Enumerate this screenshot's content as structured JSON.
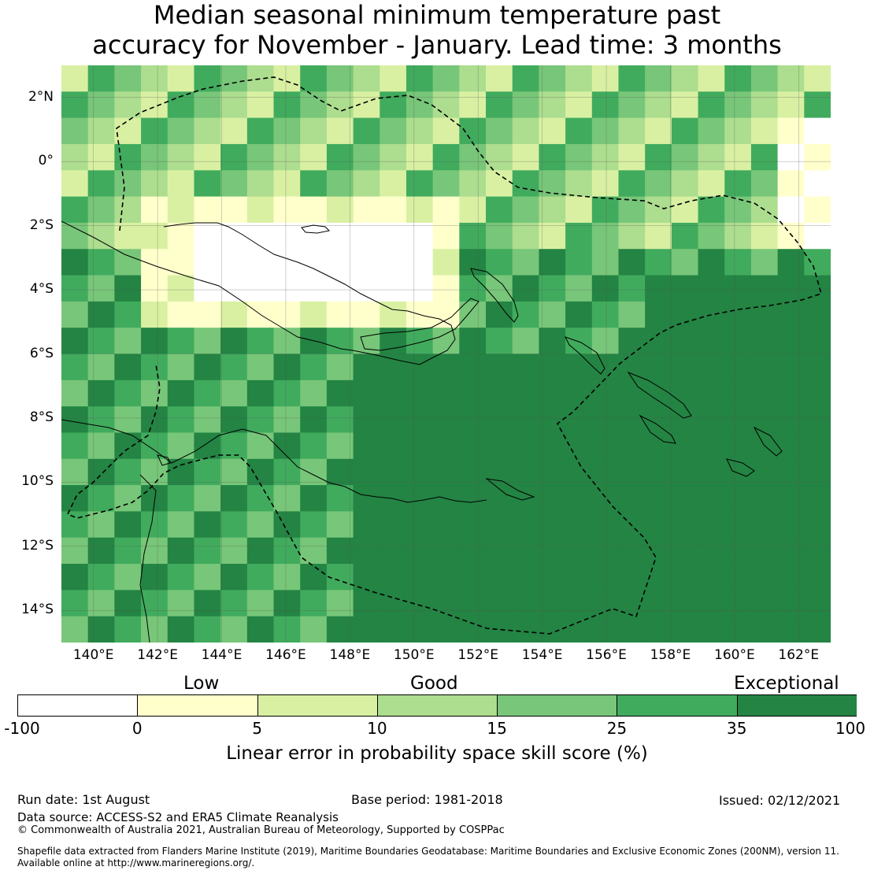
{
  "title_line1": "Median seasonal minimum temperature past",
  "title_line2": "accuracy for November - January. Lead time: 3 months",
  "map": {
    "lon_range": [
      139,
      163
    ],
    "lat_range": [
      -15,
      3
    ],
    "lat_labels": [
      "2°N",
      "0°",
      "2°S",
      "4°S",
      "6°S",
      "8°S",
      "10°S",
      "12°S",
      "14°S"
    ],
    "lat_values": [
      2,
      0,
      -2,
      -4,
      -6,
      -8,
      -10,
      -12,
      -14
    ],
    "lon_labels": [
      "140°E",
      "142°E",
      "144°E",
      "146°E",
      "148°E",
      "150°E",
      "152°E",
      "154°E",
      "156°E",
      "158°E",
      "160°E",
      "162°E"
    ],
    "lon_values": [
      140,
      142,
      144,
      146,
      148,
      150,
      152,
      154,
      156,
      158,
      160,
      162
    ]
  },
  "legend": {
    "category_low": "Low",
    "category_good": "Good",
    "category_exceptional": "Exceptional",
    "ticks": [
      "-100",
      "0",
      "5",
      "10",
      "15",
      "25",
      "35",
      "100"
    ],
    "colors": [
      "#ffffff",
      "#ffffcc",
      "#d9f0a3",
      "#addd8e",
      "#78c679",
      "#41ab5d",
      "#238443"
    ],
    "title": "Linear error in probability space skill score (%)"
  },
  "footer": {
    "run_date": "Run date: 1st August",
    "base_period": "Base period: 1981-2018",
    "issued": "Issued: 02/12/2021",
    "data_source": "Data source: ACCESS-S2 and ERA5 Climate Reanalysis",
    "copyright": "© Commonwealth of Australia 2021, Australian Bureau of Meteorology, Supported by COSPPac",
    "shapefile_line1": "Shapefile data extracted from Flanders Marine Institute (2019), Maritime Boundaries Geodatabase: Maritime Boundaries and Exclusive Economic Zones (200NM), version 11.",
    "shapefile_line2": "Available online at http://www.marineregions.org/."
  }
}
